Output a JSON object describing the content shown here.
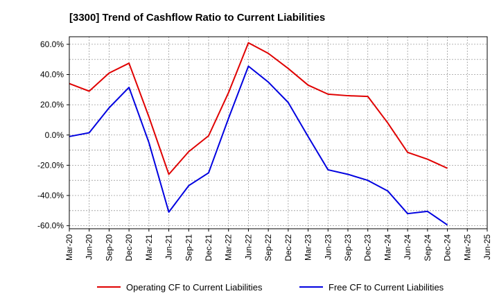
{
  "chart_data": {
    "type": "line",
    "title": "[3300]  Trend of Cashflow Ratio to Current Liabilities",
    "xlabel": "",
    "ylabel": "",
    "categories": [
      "Mar-20",
      "Jun-20",
      "Sep-20",
      "Dec-20",
      "Mar-21",
      "Jun-21",
      "Sep-21",
      "Dec-21",
      "Mar-22",
      "Jun-22",
      "Sep-22",
      "Dec-22",
      "Mar-23",
      "Jun-23",
      "Sep-23",
      "Dec-23",
      "Mar-24",
      "Jun-24",
      "Sep-24",
      "Dec-24",
      "Mar-25",
      "Jun-25"
    ],
    "ylim": [
      -62,
      65
    ],
    "yticks": [
      60,
      40,
      20,
      0,
      -20,
      -40,
      -60
    ],
    "ytick_labels": [
      "60.0%",
      "40.0%",
      "20.0%",
      "0.0%",
      "-20.0%",
      "-40.0%",
      "-60.0%"
    ],
    "grid": true,
    "legend_position": "bottom",
    "series": [
      {
        "name": "Operating CF to Current Liabilities",
        "color": "#e00000",
        "values": [
          34,
          29,
          41,
          47.5,
          12,
          -26,
          -11,
          -0.5,
          28,
          61,
          54,
          44,
          33,
          27,
          26,
          25.5,
          8,
          -11.5,
          -16,
          -22,
          null,
          null
        ]
      },
      {
        "name": "Free CF to Current Liabilities",
        "color": "#0000e0",
        "values": [
          -1,
          1.5,
          18,
          31.5,
          -5,
          -51,
          -33.5,
          -25,
          11,
          45.5,
          35,
          21.5,
          -1,
          -23,
          -26,
          -30,
          -37,
          -52,
          -50.5,
          -59.5,
          null,
          null
        ]
      }
    ]
  }
}
